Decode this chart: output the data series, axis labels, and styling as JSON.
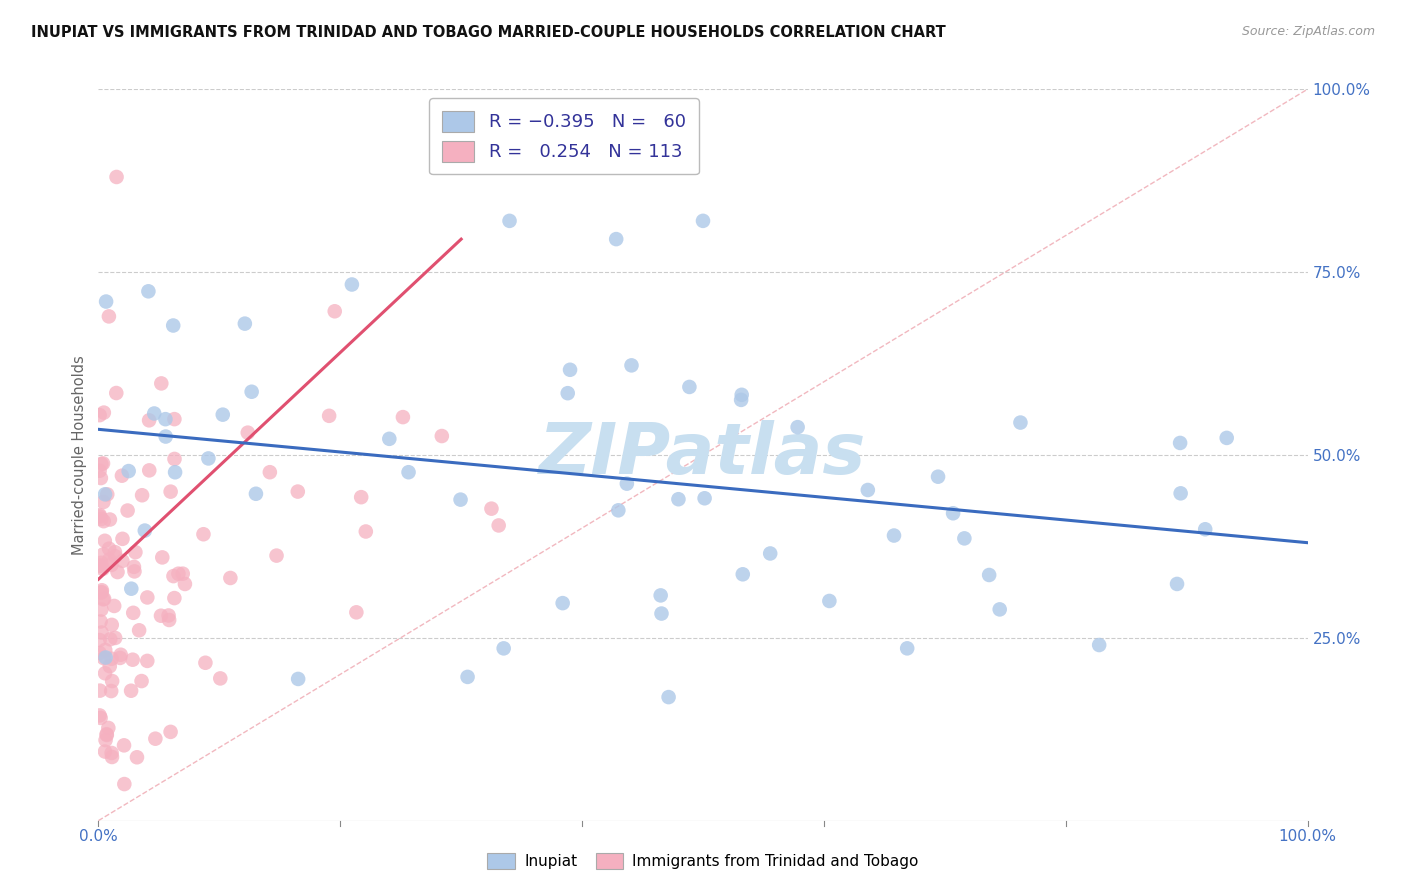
{
  "title": "INUPIAT VS IMMIGRANTS FROM TRINIDAD AND TOBAGO MARRIED-COUPLE HOUSEHOLDS CORRELATION CHART",
  "source": "Source: ZipAtlas.com",
  "ylabel": "Married-couple Households",
  "legend_label1": "Inupiat",
  "legend_label2": "Immigrants from Trinidad and Tobago",
  "R1": -0.395,
  "N1": 60,
  "R2": 0.254,
  "N2": 113,
  "color1": "#adc8e8",
  "color2": "#f5b0c0",
  "line_color1": "#3a6bbf",
  "line_color2": "#e05070",
  "diag_color": "#f0b0b8",
  "watermark_color": "#c8dff0",
  "right_tick_color": "#4472c4",
  "xtick_color": "#4472c4"
}
